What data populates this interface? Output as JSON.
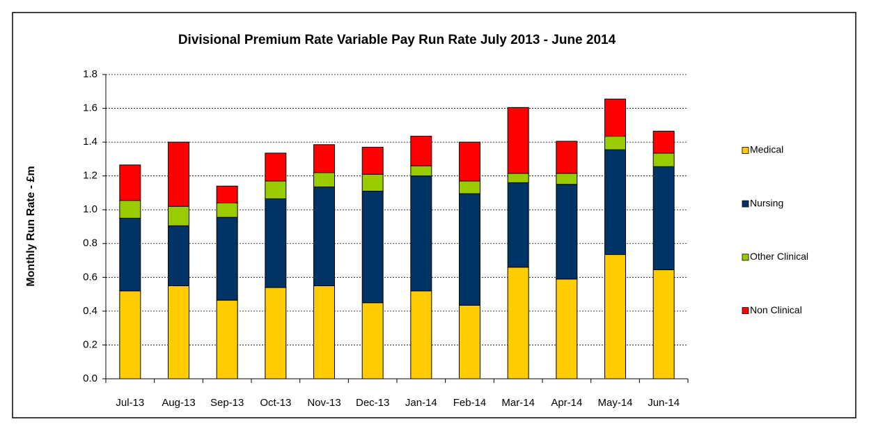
{
  "chart_data": {
    "type": "stacked_bar",
    "title": "Divisional Premium Rate Variable Pay Run Rate July 2013 - June 2014",
    "y_label": "Monthly Run Rate - £m",
    "categories": [
      "Jul-13",
      "Aug-13",
      "Sep-13",
      "Oct-13",
      "Nov-13",
      "Dec-13",
      "Jan-14",
      "Feb-14",
      "Mar-14",
      "Apr-14",
      "May-14",
      "Jun-14"
    ],
    "series": [
      {
        "name": "Medical",
        "color": "#ffcc00",
        "values": [
          0.52,
          0.55,
          0.465,
          0.54,
          0.55,
          0.45,
          0.52,
          0.435,
          0.66,
          0.59,
          0.735,
          0.645
        ]
      },
      {
        "name": "Nursing",
        "color": "#003366",
        "values": [
          0.43,
          0.355,
          0.49,
          0.525,
          0.585,
          0.66,
          0.68,
          0.66,
          0.5,
          0.56,
          0.62,
          0.61
        ]
      },
      {
        "name": "Other Clinical",
        "color": "#99cc00",
        "values": [
          0.105,
          0.115,
          0.085,
          0.105,
          0.085,
          0.1,
          0.06,
          0.075,
          0.055,
          0.065,
          0.08,
          0.08
        ]
      },
      {
        "name": "Non Clinical",
        "color": "#ff0000",
        "values": [
          0.21,
          0.38,
          0.1,
          0.165,
          0.165,
          0.16,
          0.175,
          0.23,
          0.39,
          0.19,
          0.22,
          0.13
        ]
      }
    ],
    "ylim": [
      0,
      1.8
    ],
    "yticks": [
      {
        "value": 0,
        "label": "0.0"
      },
      0.2,
      0.4,
      0.6,
      0.8,
      {
        "value": 1,
        "label": "1.0"
      },
      1.2,
      1.4,
      1.6,
      1.8
    ],
    "grid": true,
    "legend": "right"
  }
}
